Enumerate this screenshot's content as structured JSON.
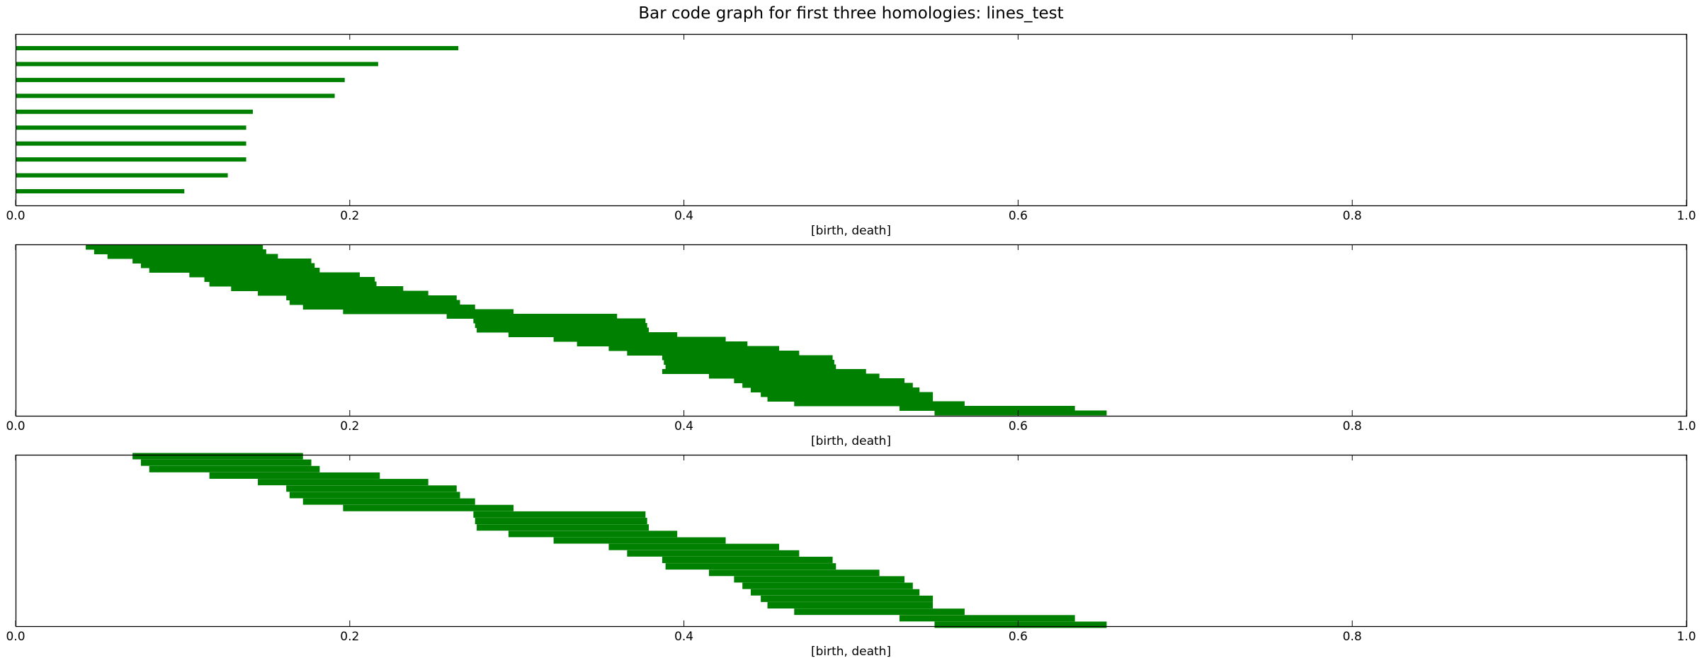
{
  "figure": {
    "title": "Bar code graph for first three homologies: lines_test"
  },
  "colors": {
    "bar": "#008000",
    "axes": "#000000",
    "background": "#ffffff"
  },
  "chart_data": [
    {
      "type": "bar",
      "orientation": "horizontal",
      "title": "",
      "xlabel": "[birth, death]",
      "ylabel": "",
      "xlim": [
        0.0,
        1.0
      ],
      "xticks": [
        "0.0",
        "0.2",
        "0.4",
        "0.6",
        "0.8",
        "1.0"
      ],
      "grid": false,
      "legend": false,
      "series": [
        {
          "intervals": [
            [
              0.0,
              0.265
            ],
            [
              0.0,
              0.217
            ],
            [
              0.0,
              0.197
            ],
            [
              0.0,
              0.191
            ],
            [
              0.0,
              0.142
            ],
            [
              0.0,
              0.138
            ],
            [
              0.0,
              0.138
            ],
            [
              0.0,
              0.138
            ],
            [
              0.0,
              0.127
            ],
            [
              0.0,
              0.101
            ]
          ]
        }
      ]
    },
    {
      "type": "bar",
      "orientation": "horizontal",
      "title": "",
      "xlabel": "[birth, death]",
      "ylabel": "",
      "xlim": [
        0.0,
        1.0
      ],
      "xticks": [
        "0.0",
        "0.2",
        "0.4",
        "0.6",
        "0.8",
        "1.0"
      ],
      "grid": false,
      "legend": false,
      "series": [
        {
          "intervals": [
            [
              0.042,
              0.148
            ],
            [
              0.047,
              0.15
            ],
            [
              0.055,
              0.157
            ],
            [
              0.07,
              0.177
            ],
            [
              0.075,
              0.179
            ],
            [
              0.08,
              0.182
            ],
            [
              0.104,
              0.206
            ],
            [
              0.113,
              0.215
            ],
            [
              0.116,
              0.216
            ],
            [
              0.129,
              0.232
            ],
            [
              0.145,
              0.247
            ],
            [
              0.162,
              0.264
            ],
            [
              0.164,
              0.266
            ],
            [
              0.172,
              0.275
            ],
            [
              0.196,
              0.298
            ],
            [
              0.258,
              0.36
            ],
            [
              0.274,
              0.377
            ],
            [
              0.275,
              0.378
            ],
            [
              0.276,
              0.379
            ],
            [
              0.295,
              0.396
            ],
            [
              0.322,
              0.425
            ],
            [
              0.336,
              0.438
            ],
            [
              0.355,
              0.457
            ],
            [
              0.366,
              0.469
            ],
            [
              0.387,
              0.489
            ],
            [
              0.388,
              0.49
            ],
            [
              0.389,
              0.491
            ],
            [
              0.387,
              0.509
            ],
            [
              0.415,
              0.517
            ],
            [
              0.43,
              0.532
            ],
            [
              0.435,
              0.537
            ],
            [
              0.44,
              0.541
            ],
            [
              0.446,
              0.549
            ],
            [
              0.45,
              0.549
            ],
            [
              0.466,
              0.568
            ],
            [
              0.529,
              0.634
            ],
            [
              0.55,
              0.653
            ]
          ]
        }
      ]
    },
    {
      "type": "bar",
      "orientation": "horizontal",
      "title": "",
      "xlabel": "[birth, death]",
      "ylabel": "",
      "xlim": [
        0.0,
        1.0
      ],
      "xticks": [
        "0.0",
        "0.2",
        "0.4",
        "0.6",
        "0.8",
        "1.0"
      ],
      "grid": false,
      "legend": false,
      "series": [
        {
          "intervals": [
            [
              0.07,
              0.172
            ],
            [
              0.075,
              0.177
            ],
            [
              0.08,
              0.182
            ],
            [
              0.116,
              0.218
            ],
            [
              0.145,
              0.247
            ],
            [
              0.162,
              0.264
            ],
            [
              0.164,
              0.266
            ],
            [
              0.172,
              0.275
            ],
            [
              0.196,
              0.298
            ],
            [
              0.274,
              0.377
            ],
            [
              0.275,
              0.378
            ],
            [
              0.276,
              0.379
            ],
            [
              0.295,
              0.396
            ],
            [
              0.322,
              0.425
            ],
            [
              0.355,
              0.457
            ],
            [
              0.366,
              0.469
            ],
            [
              0.387,
              0.489
            ],
            [
              0.389,
              0.491
            ],
            [
              0.415,
              0.517
            ],
            [
              0.43,
              0.532
            ],
            [
              0.435,
              0.537
            ],
            [
              0.44,
              0.541
            ],
            [
              0.446,
              0.549
            ],
            [
              0.45,
              0.549
            ],
            [
              0.466,
              0.568
            ],
            [
              0.529,
              0.634
            ],
            [
              0.55,
              0.653
            ]
          ]
        }
      ]
    }
  ]
}
